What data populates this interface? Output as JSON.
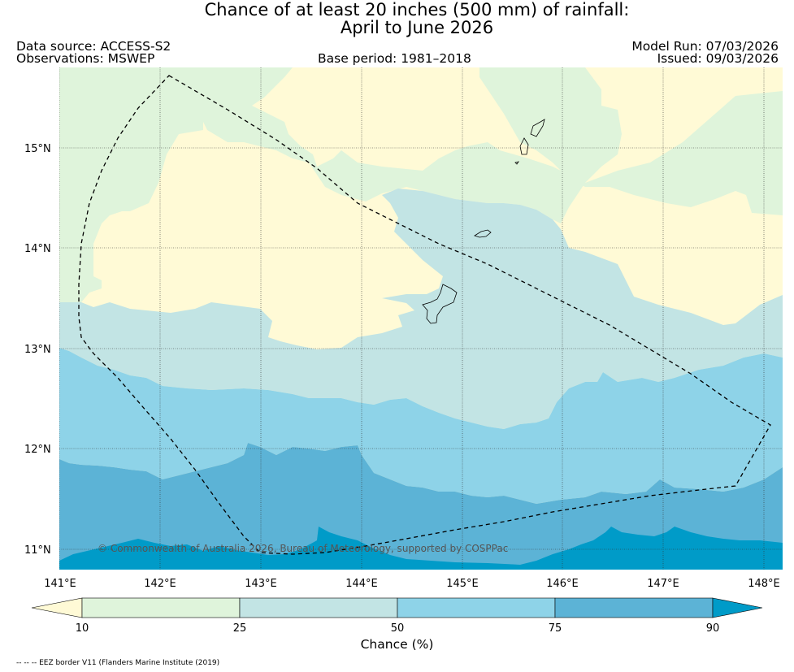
{
  "title": {
    "line1": "Chance of at least 20 inches (500  mm) of rainfall:",
    "line2": "April to June 2026"
  },
  "header": {
    "data_source": "Data source: ACCESS-S2",
    "observations": "Observations: MSWEP",
    "base_period": "Base period: 1981–2018",
    "model_run": "Model Run: 07/03/2026",
    "issued": "Issued: 09/03/2026"
  },
  "map": {
    "latitude_labels": [
      "15°N",
      "14°N",
      "13°N",
      "12°N",
      "11°N"
    ],
    "longitude_labels": [
      "141°E",
      "142°E",
      "143°E",
      "144°E",
      "145°E",
      "146°E",
      "147°E",
      "148°E"
    ],
    "copyright": "© Commonwealth of Australia 2026, Bureau of Meteorology, supported by COSPPac",
    "fill_colors": {
      "below_10": "#fffad6",
      "10_25": "#dff4db",
      "25_50": "#c2e4e4",
      "50_75": "#8ed3e8",
      "75_90": "#5cb3d6",
      "above_90": "#009bc8"
    }
  },
  "colorbar": {
    "ticks": [
      "10",
      "25",
      "50",
      "75",
      "90"
    ],
    "title": "Chance (%)"
  },
  "footnote": "-- -- -- EEZ border V11 (Flanders Marine Institute (2019)"
}
